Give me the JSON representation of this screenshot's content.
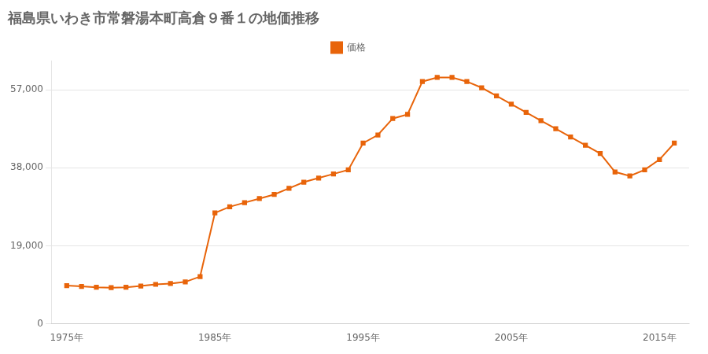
{
  "chart_data": {
    "type": "line",
    "title": "福島県いわき市常磐湯本町高倉９番１の地価推移",
    "x": [
      1975,
      1976,
      1977,
      1978,
      1979,
      1980,
      1981,
      1982,
      1983,
      1984,
      1985,
      1986,
      1987,
      1988,
      1989,
      1990,
      1991,
      1992,
      1993,
      1994,
      1995,
      1996,
      1997,
      1998,
      1999,
      2000,
      2001,
      2002,
      2003,
      2004,
      2005,
      2006,
      2007,
      2008,
      2009,
      2010,
      2011,
      2012,
      2013,
      2014,
      2015,
      2016
    ],
    "series": [
      {
        "name": "価格",
        "color": "#e8640a",
        "marker": "square",
        "values": [
          9300,
          9100,
          8900,
          8800,
          8900,
          9200,
          9600,
          9800,
          10200,
          11500,
          27000,
          28500,
          29500,
          30500,
          31500,
          33000,
          34500,
          35500,
          36500,
          37500,
          44000,
          46000,
          50000,
          51000,
          59000,
          60000,
          60000,
          59000,
          57500,
          55500,
          53500,
          51500,
          49500,
          47500,
          45500,
          43500,
          41500,
          37000,
          36000,
          37500,
          40000,
          44000
        ]
      }
    ],
    "xlim": [
      1974,
      2017
    ],
    "xticks": [
      {
        "value": 1975,
        "label": "1975年"
      },
      {
        "value": 1985,
        "label": "1985年"
      },
      {
        "value": 1995,
        "label": "1995年"
      },
      {
        "value": 2005,
        "label": "2005年"
      },
      {
        "value": 2015,
        "label": "2015年"
      }
    ],
    "ylim": [
      0,
      64000
    ],
    "yticks": [
      0,
      {
        "value": 19000,
        "label": "19,000"
      },
      {
        "value": 38000,
        "label": "38,000"
      },
      {
        "value": 57000,
        "label": "57,000"
      }
    ],
    "grid": "y",
    "legend": "top"
  }
}
